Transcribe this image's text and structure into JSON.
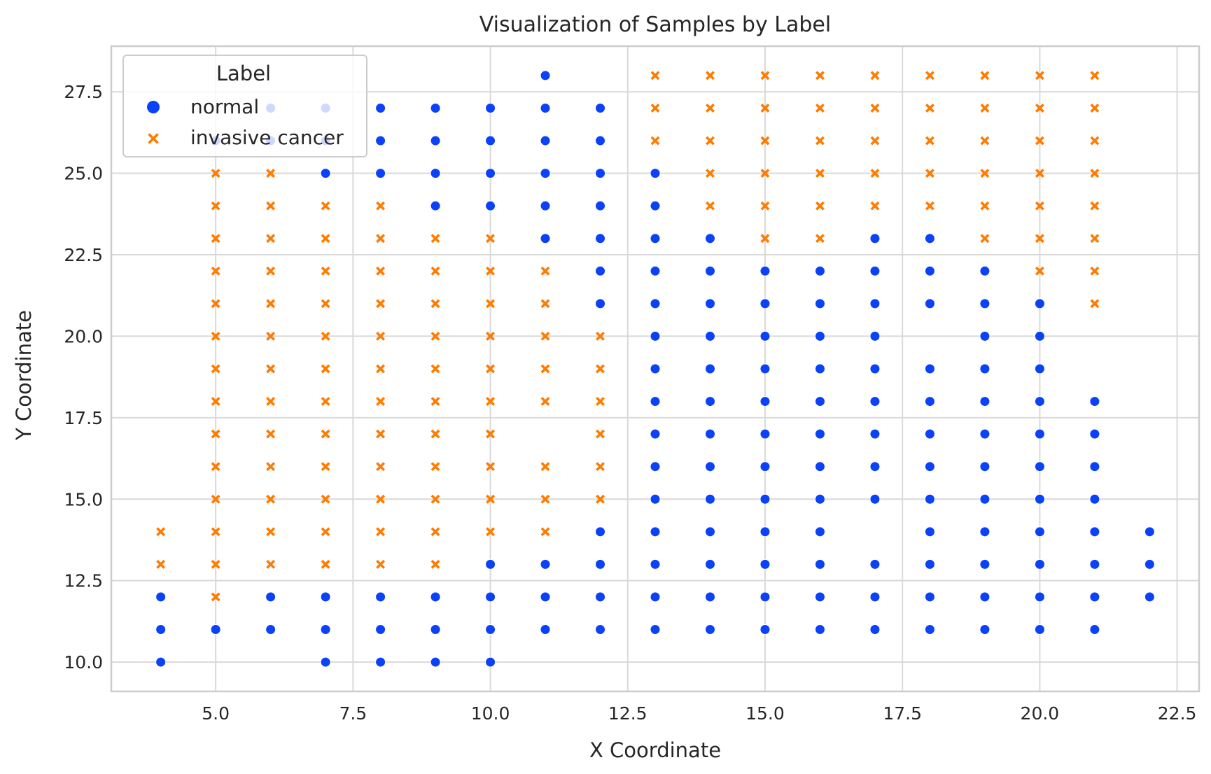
{
  "chart_data": {
    "type": "scatter",
    "title": "Visualization of Samples by Label",
    "xlabel": "X Coordinate",
    "ylabel": "Y Coordinate",
    "xlim": [
      3.1,
      22.9
    ],
    "ylim": [
      9.1,
      28.9
    ],
    "xticks": [
      "5.0",
      "7.5",
      "10.0",
      "12.5",
      "15.0",
      "17.5",
      "20.0",
      "22.5"
    ],
    "yticks": [
      "10.0",
      "12.5",
      "15.0",
      "17.5",
      "20.0",
      "22.5",
      "25.0",
      "27.5"
    ],
    "grid": true,
    "legend": {
      "title": "Label",
      "position": "top-left",
      "entries": [
        {
          "label": "normal",
          "marker": "circle",
          "color": "#0b41f7"
        },
        {
          "label": "invasive cancer",
          "marker": "x",
          "color": "#ff7c00"
        }
      ]
    },
    "series": [
      {
        "name": "normal",
        "color": "#0b41f7",
        "marker": "circle",
        "points": [
          [
            4,
            10
          ],
          [
            4,
            11
          ],
          [
            4,
            12
          ],
          [
            5,
            11
          ],
          [
            5,
            26
          ],
          [
            6,
            11
          ],
          [
            6,
            12
          ],
          [
            6,
            26
          ],
          [
            6,
            27
          ],
          [
            7,
            10
          ],
          [
            7,
            11
          ],
          [
            7,
            12
          ],
          [
            7,
            25
          ],
          [
            7,
            26
          ],
          [
            7,
            27
          ],
          [
            8,
            10
          ],
          [
            8,
            11
          ],
          [
            8,
            12
          ],
          [
            8,
            25
          ],
          [
            8,
            26
          ],
          [
            8,
            27
          ],
          [
            9,
            10
          ],
          [
            9,
            11
          ],
          [
            9,
            12
          ],
          [
            9,
            24
          ],
          [
            9,
            25
          ],
          [
            9,
            26
          ],
          [
            9,
            27
          ],
          [
            10,
            10
          ],
          [
            10,
            11
          ],
          [
            10,
            12
          ],
          [
            10,
            13
          ],
          [
            10,
            24
          ],
          [
            10,
            25
          ],
          [
            10,
            26
          ],
          [
            10,
            27
          ],
          [
            11,
            11
          ],
          [
            11,
            12
          ],
          [
            11,
            13
          ],
          [
            11,
            23
          ],
          [
            11,
            24
          ],
          [
            11,
            25
          ],
          [
            11,
            26
          ],
          [
            11,
            27
          ],
          [
            11,
            28
          ],
          [
            12,
            11
          ],
          [
            12,
            12
          ],
          [
            12,
            13
          ],
          [
            12,
            14
          ],
          [
            12,
            21
          ],
          [
            12,
            22
          ],
          [
            12,
            23
          ],
          [
            12,
            24
          ],
          [
            12,
            25
          ],
          [
            12,
            26
          ],
          [
            12,
            27
          ],
          [
            13,
            11
          ],
          [
            13,
            12
          ],
          [
            13,
            13
          ],
          [
            13,
            14
          ],
          [
            13,
            15
          ],
          [
            13,
            16
          ],
          [
            13,
            17
          ],
          [
            13,
            18
          ],
          [
            13,
            19
          ],
          [
            13,
            20
          ],
          [
            13,
            21
          ],
          [
            13,
            22
          ],
          [
            13,
            23
          ],
          [
            13,
            24
          ],
          [
            13,
            25
          ],
          [
            14,
            11
          ],
          [
            14,
            12
          ],
          [
            14,
            13
          ],
          [
            14,
            14
          ],
          [
            14,
            15
          ],
          [
            14,
            16
          ],
          [
            14,
            17
          ],
          [
            14,
            18
          ],
          [
            14,
            19
          ],
          [
            14,
            20
          ],
          [
            14,
            21
          ],
          [
            14,
            22
          ],
          [
            14,
            23
          ],
          [
            15,
            11
          ],
          [
            15,
            12
          ],
          [
            15,
            13
          ],
          [
            15,
            14
          ],
          [
            15,
            15
          ],
          [
            15,
            16
          ],
          [
            15,
            17
          ],
          [
            15,
            18
          ],
          [
            15,
            19
          ],
          [
            15,
            20
          ],
          [
            15,
            21
          ],
          [
            15,
            22
          ],
          [
            16,
            11
          ],
          [
            16,
            12
          ],
          [
            16,
            13
          ],
          [
            16,
            14
          ],
          [
            16,
            15
          ],
          [
            16,
            16
          ],
          [
            16,
            17
          ],
          [
            16,
            18
          ],
          [
            16,
            19
          ],
          [
            16,
            20
          ],
          [
            16,
            21
          ],
          [
            16,
            22
          ],
          [
            17,
            11
          ],
          [
            17,
            12
          ],
          [
            17,
            13
          ],
          [
            17,
            15
          ],
          [
            17,
            16
          ],
          [
            17,
            17
          ],
          [
            17,
            18
          ],
          [
            17,
            19
          ],
          [
            17,
            20
          ],
          [
            17,
            21
          ],
          [
            17,
            22
          ],
          [
            17,
            23
          ],
          [
            18,
            11
          ],
          [
            18,
            12
          ],
          [
            18,
            13
          ],
          [
            18,
            14
          ],
          [
            18,
            15
          ],
          [
            18,
            16
          ],
          [
            18,
            17
          ],
          [
            18,
            18
          ],
          [
            18,
            19
          ],
          [
            18,
            21
          ],
          [
            18,
            22
          ],
          [
            18,
            23
          ],
          [
            19,
            11
          ],
          [
            19,
            12
          ],
          [
            19,
            13
          ],
          [
            19,
            14
          ],
          [
            19,
            15
          ],
          [
            19,
            16
          ],
          [
            19,
            17
          ],
          [
            19,
            18
          ],
          [
            19,
            19
          ],
          [
            19,
            20
          ],
          [
            19,
            21
          ],
          [
            19,
            22
          ],
          [
            20,
            11
          ],
          [
            20,
            12
          ],
          [
            20,
            13
          ],
          [
            20,
            14
          ],
          [
            20,
            15
          ],
          [
            20,
            16
          ],
          [
            20,
            17
          ],
          [
            20,
            18
          ],
          [
            20,
            19
          ],
          [
            20,
            20
          ],
          [
            20,
            21
          ],
          [
            21,
            11
          ],
          [
            21,
            12
          ],
          [
            21,
            13
          ],
          [
            21,
            14
          ],
          [
            21,
            15
          ],
          [
            21,
            16
          ],
          [
            21,
            17
          ],
          [
            21,
            18
          ],
          [
            22,
            12
          ],
          [
            22,
            13
          ],
          [
            22,
            14
          ]
        ]
      },
      {
        "name": "invasive cancer",
        "color": "#ff7c00",
        "marker": "x",
        "points": [
          [
            4,
            13
          ],
          [
            4,
            14
          ],
          [
            5,
            12
          ],
          [
            5,
            13
          ],
          [
            5,
            14
          ],
          [
            5,
            15
          ],
          [
            5,
            16
          ],
          [
            5,
            17
          ],
          [
            5,
            18
          ],
          [
            5,
            19
          ],
          [
            5,
            20
          ],
          [
            5,
            21
          ],
          [
            5,
            22
          ],
          [
            5,
            23
          ],
          [
            5,
            24
          ],
          [
            5,
            25
          ],
          [
            6,
            13
          ],
          [
            6,
            14
          ],
          [
            6,
            15
          ],
          [
            6,
            16
          ],
          [
            6,
            17
          ],
          [
            6,
            18
          ],
          [
            6,
            19
          ],
          [
            6,
            20
          ],
          [
            6,
            21
          ],
          [
            6,
            22
          ],
          [
            6,
            23
          ],
          [
            6,
            24
          ],
          [
            6,
            25
          ],
          [
            7,
            13
          ],
          [
            7,
            14
          ],
          [
            7,
            15
          ],
          [
            7,
            16
          ],
          [
            7,
            17
          ],
          [
            7,
            18
          ],
          [
            7,
            19
          ],
          [
            7,
            20
          ],
          [
            7,
            21
          ],
          [
            7,
            22
          ],
          [
            7,
            23
          ],
          [
            7,
            24
          ],
          [
            8,
            13
          ],
          [
            8,
            14
          ],
          [
            8,
            15
          ],
          [
            8,
            16
          ],
          [
            8,
            17
          ],
          [
            8,
            18
          ],
          [
            8,
            19
          ],
          [
            8,
            20
          ],
          [
            8,
            21
          ],
          [
            8,
            22
          ],
          [
            8,
            23
          ],
          [
            8,
            24
          ],
          [
            9,
            13
          ],
          [
            9,
            14
          ],
          [
            9,
            15
          ],
          [
            9,
            16
          ],
          [
            9,
            17
          ],
          [
            9,
            18
          ],
          [
            9,
            19
          ],
          [
            9,
            20
          ],
          [
            9,
            21
          ],
          [
            9,
            22
          ],
          [
            9,
            23
          ],
          [
            10,
            14
          ],
          [
            10,
            15
          ],
          [
            10,
            16
          ],
          [
            10,
            17
          ],
          [
            10,
            18
          ],
          [
            10,
            19
          ],
          [
            10,
            20
          ],
          [
            10,
            21
          ],
          [
            10,
            22
          ],
          [
            10,
            23
          ],
          [
            11,
            14
          ],
          [
            11,
            15
          ],
          [
            11,
            16
          ],
          [
            11,
            18
          ],
          [
            11,
            19
          ],
          [
            11,
            20
          ],
          [
            11,
            21
          ],
          [
            11,
            22
          ],
          [
            12,
            15
          ],
          [
            12,
            16
          ],
          [
            12,
            17
          ],
          [
            12,
            18
          ],
          [
            12,
            19
          ],
          [
            12,
            20
          ],
          [
            13,
            26
          ],
          [
            13,
            27
          ],
          [
            13,
            28
          ],
          [
            14,
            24
          ],
          [
            14,
            25
          ],
          [
            14,
            26
          ],
          [
            14,
            27
          ],
          [
            14,
            28
          ],
          [
            15,
            23
          ],
          [
            15,
            24
          ],
          [
            15,
            25
          ],
          [
            15,
            26
          ],
          [
            15,
            27
          ],
          [
            15,
            28
          ],
          [
            16,
            23
          ],
          [
            16,
            24
          ],
          [
            16,
            25
          ],
          [
            16,
            26
          ],
          [
            16,
            27
          ],
          [
            16,
            28
          ],
          [
            17,
            24
          ],
          [
            17,
            25
          ],
          [
            17,
            26
          ],
          [
            17,
            27
          ],
          [
            17,
            28
          ],
          [
            18,
            24
          ],
          [
            18,
            25
          ],
          [
            18,
            26
          ],
          [
            18,
            27
          ],
          [
            18,
            28
          ],
          [
            19,
            23
          ],
          [
            19,
            24
          ],
          [
            19,
            25
          ],
          [
            19,
            26
          ],
          [
            19,
            27
          ],
          [
            19,
            28
          ],
          [
            20,
            22
          ],
          [
            20,
            23
          ],
          [
            20,
            24
          ],
          [
            20,
            25
          ],
          [
            20,
            26
          ],
          [
            20,
            27
          ],
          [
            20,
            28
          ],
          [
            21,
            21
          ],
          [
            21,
            22
          ],
          [
            21,
            23
          ],
          [
            21,
            24
          ],
          [
            21,
            25
          ],
          [
            21,
            26
          ],
          [
            21,
            27
          ],
          [
            21,
            28
          ]
        ]
      }
    ]
  }
}
